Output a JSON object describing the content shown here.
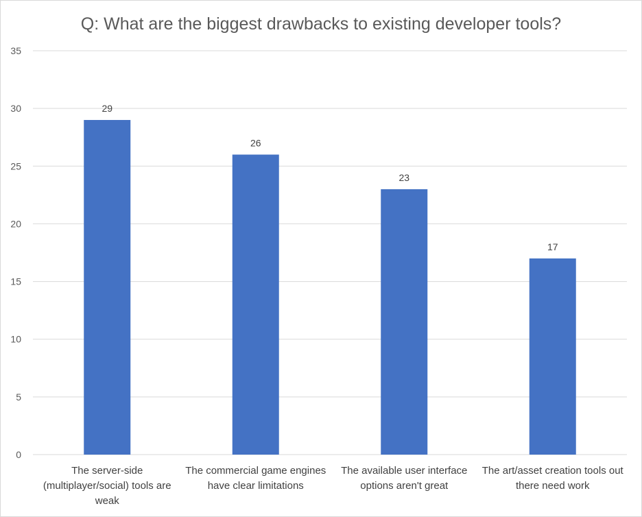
{
  "chart_data": {
    "type": "bar",
    "title": "Q: What are the biggest drawbacks to existing developer tools?",
    "categories": [
      "The server-side (multiplayer/social) tools are weak",
      "The commercial game engines have clear limitations",
      "The available user interface options aren't great",
      "The art/asset creation tools out there need work"
    ],
    "values": [
      29,
      26,
      23,
      17
    ],
    "data_labels": [
      "29",
      "26",
      "23",
      "17"
    ],
    "ylim": [
      0,
      35
    ],
    "yticks": [
      "0",
      "5",
      "10",
      "15",
      "20",
      "25",
      "30",
      "35"
    ],
    "xlabel": "",
    "ylabel": "",
    "grid": true,
    "bar_color": "#4472C4",
    "grid_color": "#d9d9d9"
  }
}
